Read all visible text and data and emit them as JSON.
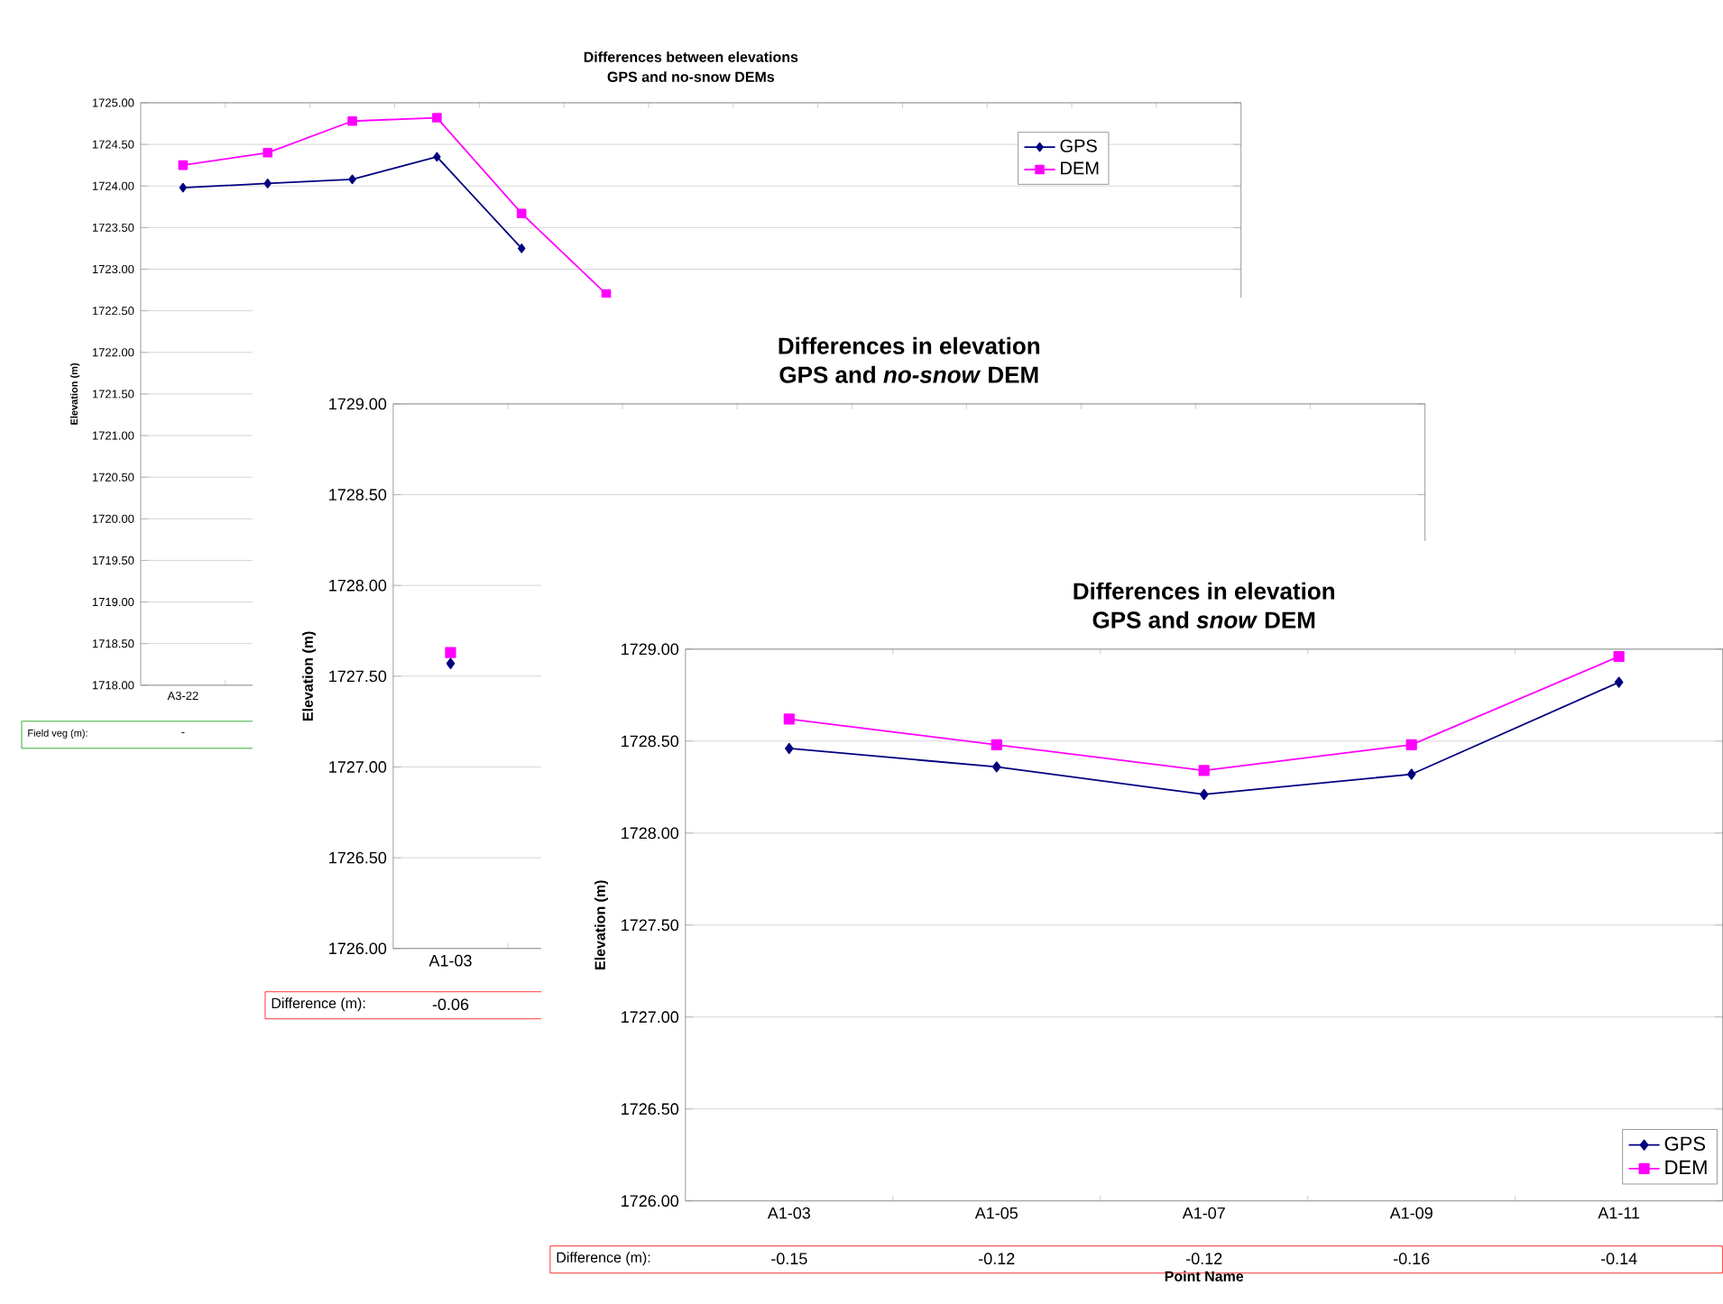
{
  "chart_data": [
    {
      "type": "line",
      "title": "Differences between elevations",
      "subtitle": "GPS and no-snow DEMs",
      "ylabel": "Elevation (m)",
      "categories": [
        "A3-22",
        null,
        null,
        null,
        null,
        null,
        null,
        null,
        null,
        null,
        null,
        null,
        null
      ],
      "series": [
        {
          "name": "GPS",
          "color": "#000080",
          "marker": "diamond",
          "values": [
            1723.98,
            1724.03,
            1724.08,
            1724.35,
            1723.25,
            null,
            null,
            null,
            null,
            null,
            null,
            null,
            null
          ]
        },
        {
          "name": "DEM",
          "color": "#ff00ff",
          "marker": "square",
          "values": [
            1724.25,
            1724.4,
            1724.78,
            1724.82,
            1723.67,
            1722.7,
            null,
            null,
            null,
            null,
            null,
            null,
            null
          ]
        }
      ],
      "ylim": [
        1718,
        1725
      ],
      "yticks": [
        {
          "value": 1718,
          "label": "1718.00"
        },
        {
          "value": 1718.5,
          "label": "1718.50"
        },
        {
          "value": 1719,
          "label": "1719.00"
        },
        {
          "value": 1719.5,
          "label": "1719.50"
        },
        {
          "value": 1720,
          "label": "1720.00"
        },
        {
          "value": 1720.5,
          "label": "1720.50"
        },
        {
          "value": 1721,
          "label": "1721.00"
        },
        {
          "value": 1721.5,
          "label": "1721.50"
        },
        {
          "value": 1722,
          "label": "1722.00"
        },
        {
          "value": 1722.5,
          "label": "1722.50"
        },
        {
          "value": 1723,
          "label": "1723.00"
        },
        {
          "value": 1723.5,
          "label": "1723.50"
        },
        {
          "value": 1724,
          "label": "1724.00"
        },
        {
          "value": 1724.5,
          "label": "1724.50"
        },
        {
          "value": 1725,
          "label": "1725.00"
        }
      ],
      "grid": "y",
      "legend": "top right",
      "annotations": [
        "Field veg (m):",
        "-"
      ]
    },
    {
      "type": "line",
      "title": "Differences in elevation",
      "subtitle": "GPS and *no-snow* DEM",
      "ylabel": "Elevation (m)",
      "categories": [
        "A1-03",
        null,
        null,
        null,
        null,
        null,
        null,
        null,
        null
      ],
      "series": [
        {
          "color": "#000080",
          "marker": "diamond",
          "values": [
            1727.57,
            null,
            null,
            null,
            null,
            null,
            null,
            null,
            null
          ]
        },
        {
          "color": "#ff00ff",
          "marker": "square",
          "values": [
            1727.63,
            null,
            null,
            null,
            null,
            null,
            null,
            null,
            null
          ]
        }
      ],
      "ylim": [
        1726,
        1729
      ],
      "yticks": [
        {
          "value": 1726,
          "label": "1726.00"
        },
        {
          "value": 1726.5,
          "label": "1726.50"
        },
        {
          "value": 1727,
          "label": "1727.00"
        },
        {
          "value": 1727.5,
          "label": "1727.50"
        },
        {
          "value": 1728,
          "label": "1728.00"
        },
        {
          "value": 1728.5,
          "label": "1728.50"
        },
        {
          "value": 1729,
          "label": "1729.00"
        }
      ],
      "grid": "y",
      "annotations": [
        "Difference (m):",
        "-0.06"
      ]
    },
    {
      "type": "line",
      "title": "Differences in elevation",
      "subtitle": "GPS and *snow* DEM",
      "ylabel": "Elevation (m)",
      "xlabel": "Point Name",
      "categories": [
        "A1-03",
        "A1-05",
        "A1-07",
        "A1-09",
        "A1-11"
      ],
      "series": [
        {
          "name": "GPS",
          "color": "#000080",
          "marker": "diamond",
          "values": [
            1728.46,
            1728.36,
            1728.21,
            1728.32,
            1728.82
          ]
        },
        {
          "name": "DEM",
          "color": "#ff00ff",
          "marker": "square",
          "values": [
            1728.62,
            1728.48,
            1728.34,
            1728.48,
            1728.96
          ]
        }
      ],
      "ylim": [
        1726,
        1729
      ],
      "yticks": [
        {
          "value": 1726,
          "label": "1726.00"
        },
        {
          "value": 1726.5,
          "label": "1726.50"
        },
        {
          "value": 1727,
          "label": "1727.00"
        },
        {
          "value": 1727.5,
          "label": "1727.50"
        },
        {
          "value": 1728,
          "label": "1728.00"
        },
        {
          "value": 1728.5,
          "label": "1728.50"
        },
        {
          "value": 1729,
          "label": "1729.00"
        }
      ],
      "grid": "y",
      "legend": "bottom right",
      "annotations": [
        "Difference (m):",
        "-0.15",
        "-0.12",
        "-0.12",
        "-0.16",
        "-0.14"
      ]
    }
  ]
}
